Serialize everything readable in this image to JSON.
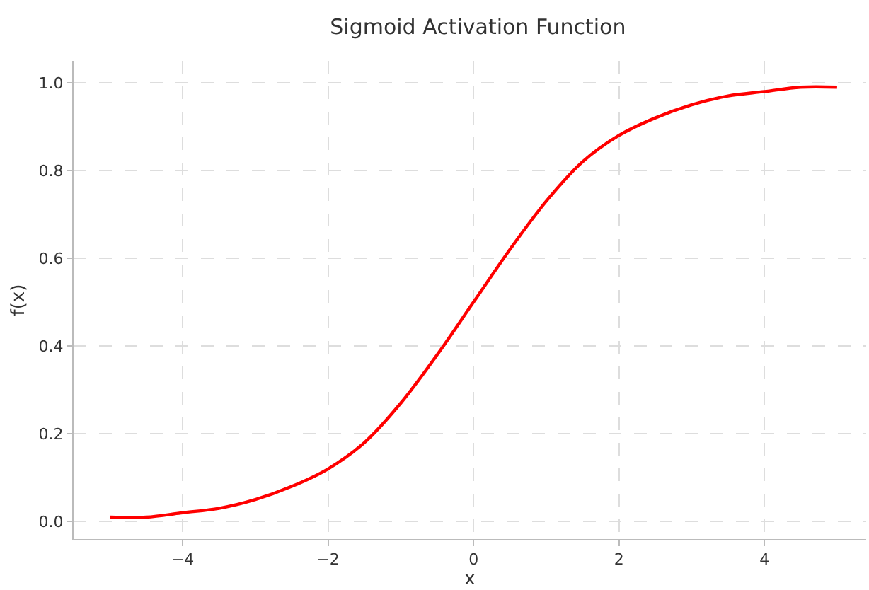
{
  "chart_data": {
    "type": "line",
    "title": "Sigmoid Activation Function",
    "xlabel": "x",
    "ylabel": "f(x)",
    "x": [
      -5,
      -4.5,
      -4,
      -3.5,
      -3,
      -2.5,
      -2,
      -1.5,
      -1,
      -0.5,
      0,
      0.5,
      1,
      1.5,
      2,
      2.5,
      3,
      3.5,
      4,
      4.5,
      5
    ],
    "series": [
      {
        "color": "#ff0000",
        "values": [
          0.01,
          0.01,
          0.02,
          0.03,
          0.05,
          0.08,
          0.12,
          0.18,
          0.27,
          0.38,
          0.5,
          0.62,
          0.73,
          0.82,
          0.88,
          0.92,
          0.95,
          0.97,
          0.98,
          0.99,
          0.99
        ]
      }
    ],
    "xlim": [
      -5.5,
      5.4
    ],
    "xticks": [
      -4,
      -2,
      0,
      2,
      4
    ],
    "ylim": [
      -0.04,
      1.05
    ],
    "yticks": [
      {
        "value": 0,
        "label": "0.0"
      },
      0.2,
      0.4,
      0.6,
      0.8,
      {
        "value": 1,
        "label": "1.0"
      }
    ],
    "grid": true,
    "line_style": "solid",
    "marker": "none"
  }
}
